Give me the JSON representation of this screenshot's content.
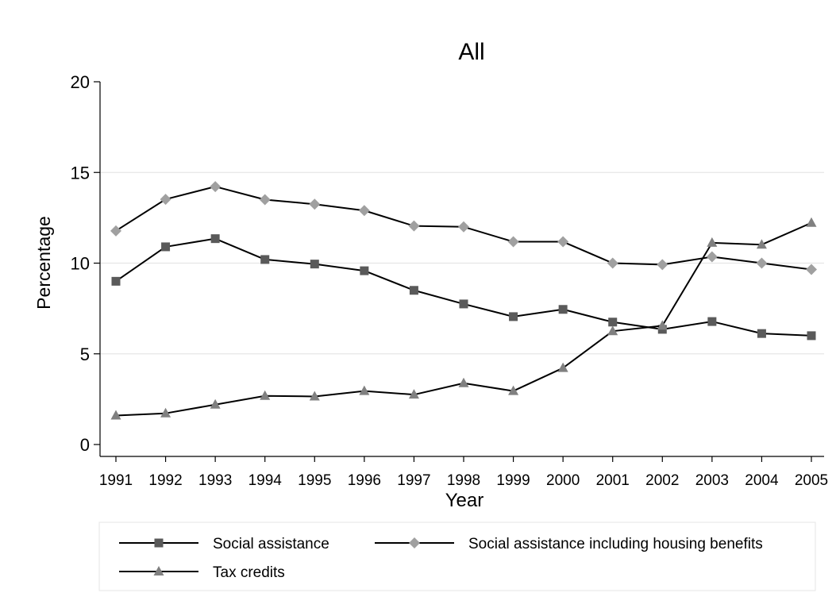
{
  "chart_data": {
    "type": "line",
    "title": "All",
    "xlabel": "Year",
    "ylabel": "Percentage",
    "x": [
      1991,
      1992,
      1993,
      1994,
      1995,
      1996,
      1997,
      1998,
      1999,
      2000,
      2001,
      2002,
      2003,
      2004,
      2005
    ],
    "xticks": [
      "1991",
      "1992",
      "1993",
      "1994",
      "1995",
      "1996",
      "1997",
      "1998",
      "1999",
      "2000",
      "2001",
      "2002",
      "2003",
      "2004",
      "2005"
    ],
    "ylim": [
      0,
      20
    ],
    "yticks": [
      0,
      5,
      10,
      15,
      20
    ],
    "grid": true,
    "legend_position": "bottom",
    "series": [
      {
        "name": "Social assistance",
        "marker": "square",
        "marker_color": "#5a5a5a",
        "values": [
          9.0,
          10.9,
          11.35,
          10.2,
          9.95,
          9.58,
          8.5,
          7.75,
          7.05,
          7.45,
          6.75,
          6.35,
          6.78,
          6.12,
          6.0
        ]
      },
      {
        "name": "Social assistance including housing benefits",
        "marker": "diamond",
        "marker_color": "#a0a0a0",
        "values": [
          11.78,
          13.52,
          14.22,
          13.5,
          13.25,
          12.9,
          12.05,
          12.0,
          11.18,
          11.18,
          10.0,
          9.92,
          10.35,
          10.0,
          9.65
        ]
      },
      {
        "name": "Tax credits",
        "marker": "triangle",
        "marker_color": "#808080",
        "values": [
          1.6,
          1.72,
          2.2,
          2.68,
          2.65,
          2.95,
          2.75,
          3.38,
          2.95,
          4.22,
          6.25,
          6.55,
          11.12,
          11.02,
          12.22
        ]
      }
    ]
  }
}
